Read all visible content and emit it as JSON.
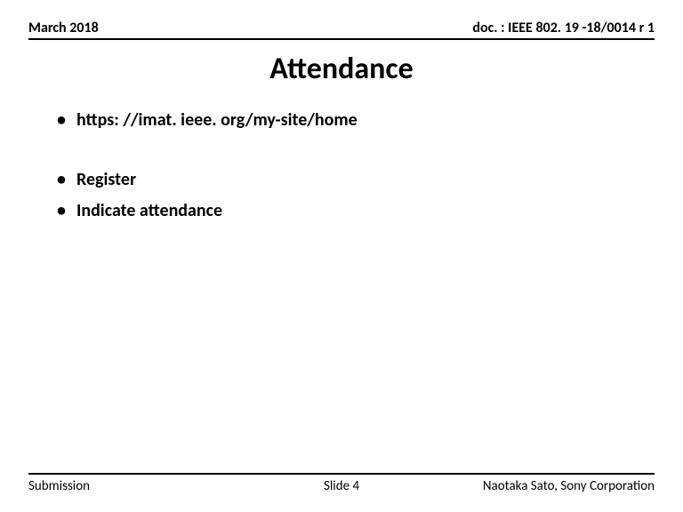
{
  "header": {
    "date": "March 2018",
    "doc_ref": "doc. : IEEE 802. 19 -18/0014 r 1"
  },
  "title": "Attendance",
  "bullets": {
    "group1": [
      "https: //imat. ieee. org/my-site/home"
    ],
    "group2": [
      "Register",
      "Indicate attendance"
    ]
  },
  "footer": {
    "left": "Submission",
    "center": "Slide 4",
    "right": "Naotaka Sato, Sony Corporation"
  },
  "style": {
    "background_color": "#ffffff",
    "text_color": "#000000",
    "rule_color": "#000000",
    "title_fontsize": 34,
    "header_fontsize": 16,
    "bullet_fontsize": 20,
    "footer_fontsize": 15
  }
}
